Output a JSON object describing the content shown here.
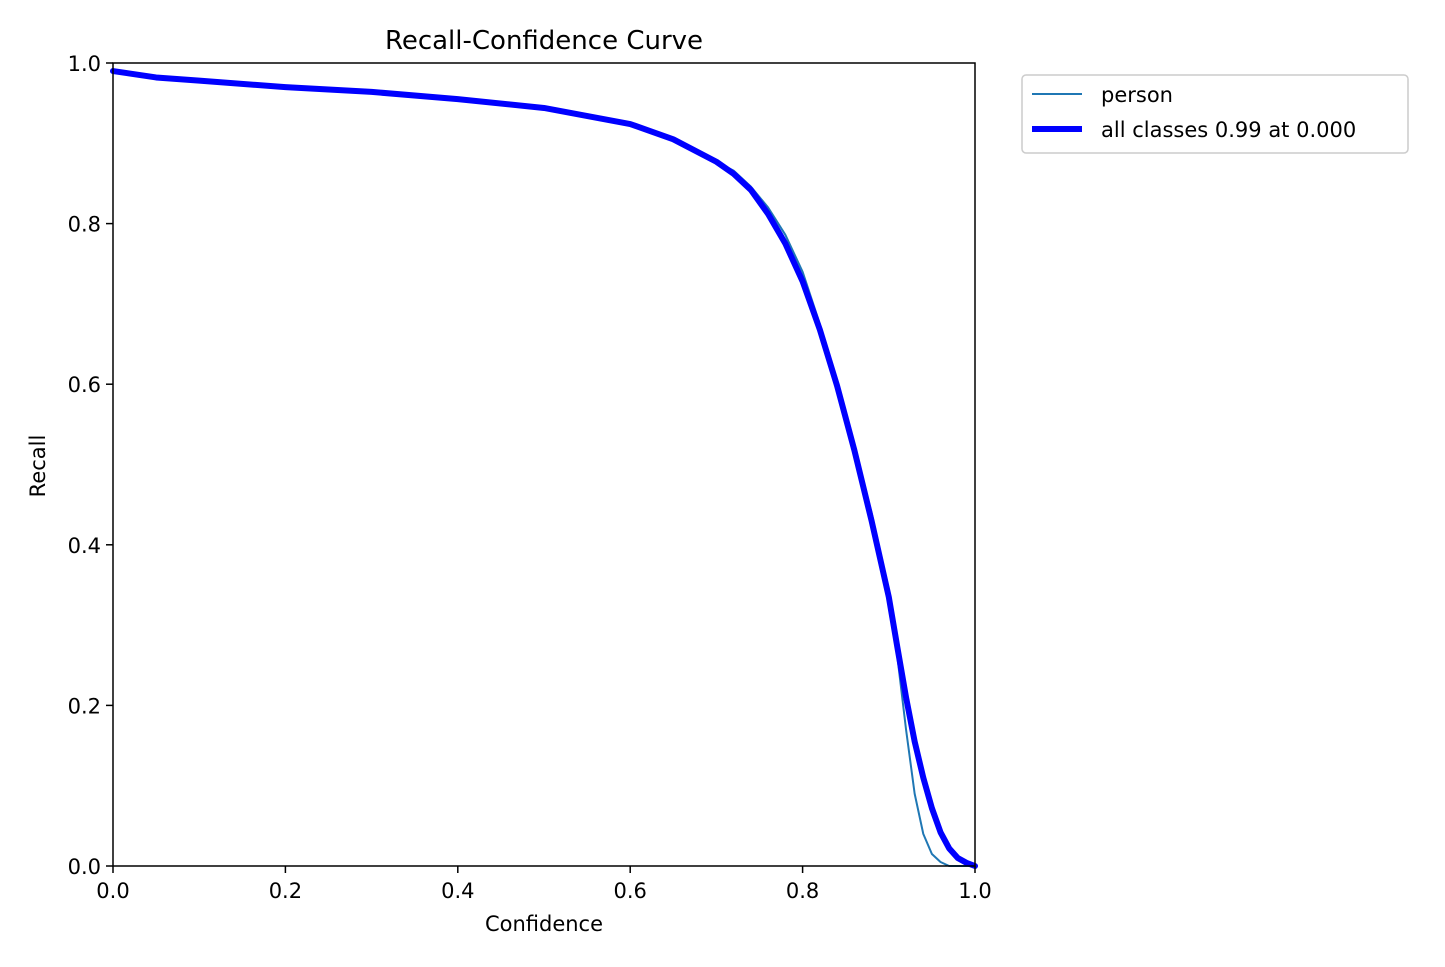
{
  "chart_data": {
    "type": "line",
    "title": "Recall-Confidence Curve",
    "xlabel": "Confidence",
    "ylabel": "Recall",
    "xlim": [
      0.0,
      1.0
    ],
    "ylim": [
      0.0,
      1.0
    ],
    "xticks": [
      "0.0",
      "0.2",
      "0.4",
      "0.6",
      "0.8",
      "1.0"
    ],
    "yticks": [
      "0.0",
      "0.2",
      "0.4",
      "0.6",
      "0.8",
      "1.0"
    ],
    "grid": false,
    "legend_position": "outside-upper-right",
    "series": [
      {
        "name": "person",
        "color": "#1f77b4",
        "line": "thin",
        "x": [
          0.0,
          0.05,
          0.1,
          0.2,
          0.3,
          0.4,
          0.5,
          0.6,
          0.65,
          0.7,
          0.72,
          0.74,
          0.76,
          0.78,
          0.8,
          0.82,
          0.84,
          0.86,
          0.88,
          0.9,
          0.91,
          0.92,
          0.93,
          0.94,
          0.95,
          0.96,
          0.97,
          1.0
        ],
        "y": [
          0.99,
          0.982,
          0.978,
          0.97,
          0.964,
          0.955,
          0.944,
          0.924,
          0.905,
          0.877,
          0.866,
          0.846,
          0.82,
          0.786,
          0.74,
          0.675,
          0.6,
          0.52,
          0.44,
          0.34,
          0.26,
          0.17,
          0.09,
          0.04,
          0.015,
          0.005,
          0.0,
          0.0
        ]
      },
      {
        "name": "all classes 0.99 at 0.000",
        "color": "#0000ff",
        "line": "thick",
        "x": [
          0.0,
          0.05,
          0.1,
          0.2,
          0.3,
          0.4,
          0.5,
          0.6,
          0.65,
          0.7,
          0.72,
          0.74,
          0.76,
          0.78,
          0.8,
          0.82,
          0.84,
          0.86,
          0.88,
          0.9,
          0.91,
          0.92,
          0.93,
          0.94,
          0.95,
          0.96,
          0.97,
          0.98,
          0.99,
          1.0
        ],
        "y": [
          0.99,
          0.982,
          0.978,
          0.97,
          0.964,
          0.955,
          0.944,
          0.924,
          0.905,
          0.877,
          0.862,
          0.842,
          0.812,
          0.775,
          0.728,
          0.668,
          0.598,
          0.518,
          0.43,
          0.335,
          0.272,
          0.21,
          0.155,
          0.11,
          0.072,
          0.042,
          0.022,
          0.01,
          0.004,
          0.0
        ]
      }
    ]
  }
}
